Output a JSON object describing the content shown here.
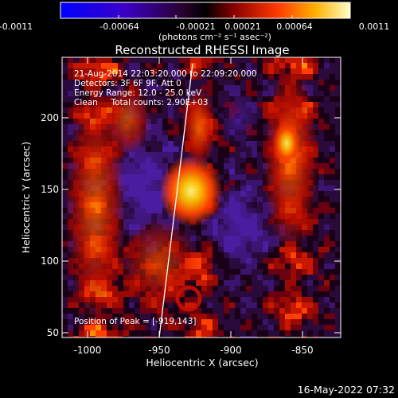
{
  "colorbar": {
    "tick_labels": [
      "-0.0011",
      "-0.00064",
      "-0.00021",
      "0.00021",
      "0.00064",
      "0.0011"
    ],
    "units_label": "(photons cm⁻² s⁻¹ asec⁻²)"
  },
  "plot": {
    "title": "Reconstructed RHESSI Image",
    "info_lines": [
      "21-Aug-2014 22:03:20.000 to 22:09:20.000",
      "Detectors: 3F 6F 9F, Att 0",
      "Energy Range: 12.0 - 25.0 keV",
      "Clean     Total counts: 2.90E+03"
    ],
    "peak_text": "Position of Peak = [-919,143]",
    "xlabel": "Heliocentric X (arcsec)",
    "ylabel": "Heliocentric Y (arcsec)",
    "xticks": [
      "-1000",
      "-950",
      "-900",
      "-850"
    ],
    "yticks": [
      "50",
      "100",
      "150",
      "200"
    ]
  },
  "footer": {
    "timestamp": "16-May-2022 07:32"
  },
  "colors": {
    "background": "#000000",
    "text": "#ffffff"
  }
}
